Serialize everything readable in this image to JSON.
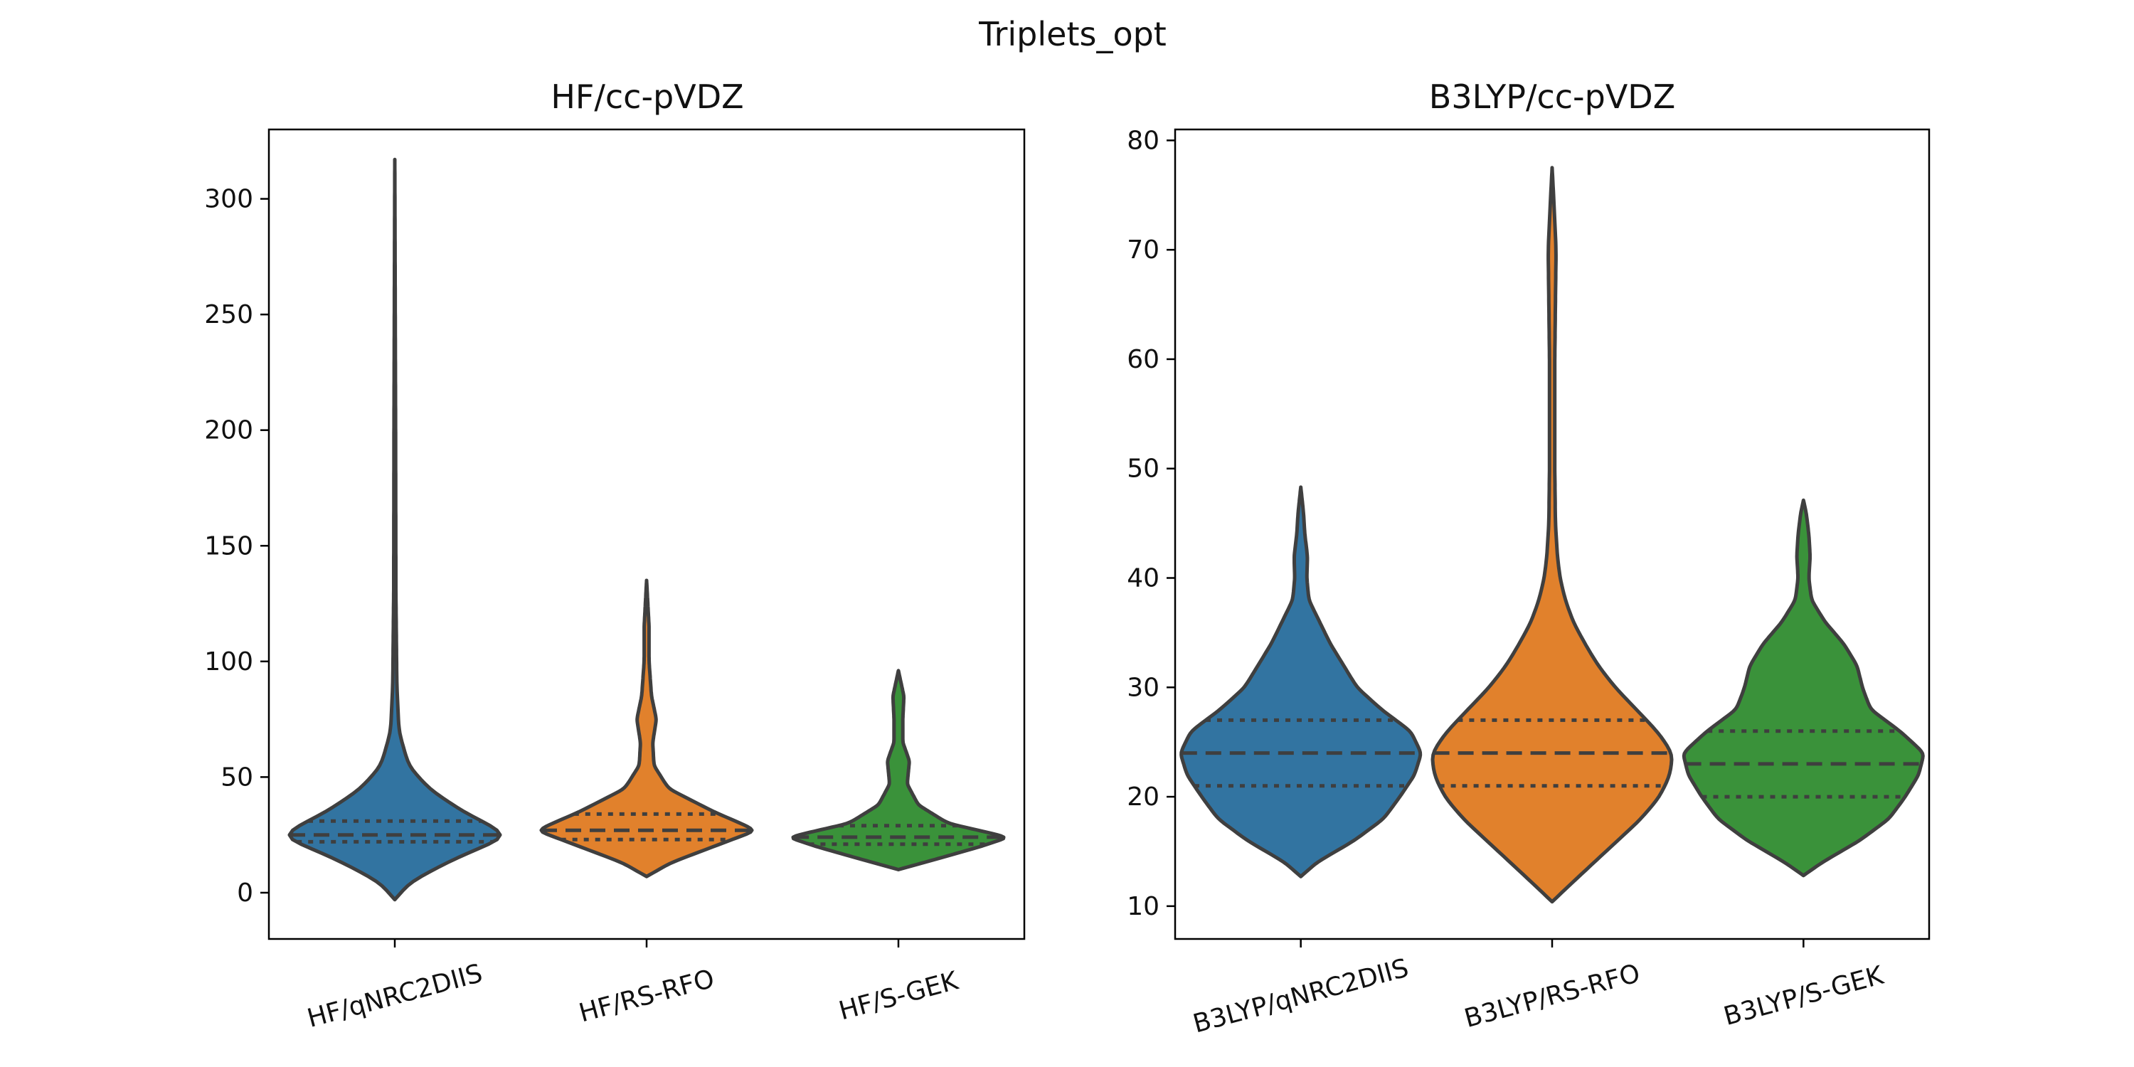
{
  "figure": {
    "title": "Triplets_opt"
  },
  "chart_data": [
    {
      "type": "violin",
      "title": "HF/cc-pVDZ",
      "xlabel": "",
      "ylabel": "",
      "ylim": [
        -20,
        330
      ],
      "yticks": [
        0,
        50,
        100,
        150,
        200,
        250,
        300
      ],
      "grid": false,
      "inner": "quartile",
      "categories": [
        "HF/qNRC2DIIS",
        "HF/RS-RFO",
        "HF/S-GEK"
      ],
      "colors": [
        "#3274a1",
        "#e1812c",
        "#3a923a"
      ],
      "violins": [
        {
          "name": "HF/qNRC2DIIS",
          "min": -3,
          "max": 317,
          "q1": 22,
          "median": 25,
          "q3": 31,
          "density": [
            [
              -3,
              0.0
            ],
            [
              5,
              0.12
            ],
            [
              15,
              0.45
            ],
            [
              25,
              0.85
            ],
            [
              35,
              0.5
            ],
            [
              45,
              0.25
            ],
            [
              55,
              0.1
            ],
            [
              70,
              0.03
            ],
            [
              90,
              0.015
            ],
            [
              130,
              0.008
            ],
            [
              200,
              0.006
            ],
            [
              317,
              0.0
            ]
          ]
        },
        {
          "name": "HF/RS-RFO",
          "min": 7,
          "max": 135,
          "q1": 23,
          "median": 27,
          "q3": 34,
          "density": [
            [
              7,
              0.0
            ],
            [
              13,
              0.2
            ],
            [
              20,
              0.55
            ],
            [
              27,
              0.9
            ],
            [
              35,
              0.55
            ],
            [
              45,
              0.18
            ],
            [
              55,
              0.06
            ],
            [
              65,
              0.05
            ],
            [
              75,
              0.08
            ],
            [
              85,
              0.04
            ],
            [
              100,
              0.02
            ],
            [
              115,
              0.02
            ],
            [
              135,
              0.0
            ]
          ]
        },
        {
          "name": "HF/S-GEK",
          "min": 10,
          "max": 96,
          "q1": 21,
          "median": 24,
          "q3": 29,
          "density": [
            [
              10,
              0.0
            ],
            [
              15,
              0.38
            ],
            [
              20,
              0.75
            ],
            [
              24,
              1.0
            ],
            [
              30,
              0.45
            ],
            [
              38,
              0.18
            ],
            [
              47,
              0.08
            ],
            [
              57,
              0.1
            ],
            [
              65,
              0.04
            ],
            [
              75,
              0.04
            ],
            [
              85,
              0.05
            ],
            [
              96,
              0.0
            ]
          ]
        }
      ]
    },
    {
      "type": "violin",
      "title": "B3LYP/cc-pVDZ",
      "xlabel": "",
      "ylabel": "",
      "ylim": [
        7,
        81
      ],
      "yticks": [
        10,
        20,
        30,
        40,
        50,
        60,
        70,
        80
      ],
      "grid": false,
      "inner": "quartile",
      "categories": [
        "B3LYP/qNRC2DIIS",
        "B3LYP/RS-RFO",
        "B3LYP/S-GEK"
      ],
      "colors": [
        "#3274a1",
        "#e1812c",
        "#3a923a"
      ],
      "violins": [
        {
          "name": "B3LYP/qNRC2DIIS",
          "min": 12.7,
          "max": 48.3,
          "q1": 21,
          "median": 24,
          "q3": 27,
          "density": [
            [
              12.7,
              0.0
            ],
            [
              14,
              0.12
            ],
            [
              16,
              0.4
            ],
            [
              18,
              0.62
            ],
            [
              20,
              0.74
            ],
            [
              22,
              0.85
            ],
            [
              24,
              0.9
            ],
            [
              26,
              0.82
            ],
            [
              28,
              0.6
            ],
            [
              30,
              0.42
            ],
            [
              32,
              0.32
            ],
            [
              34,
              0.22
            ],
            [
              36,
              0.14
            ],
            [
              38,
              0.06
            ],
            [
              40,
              0.045
            ],
            [
              42,
              0.05
            ],
            [
              44,
              0.03
            ],
            [
              46,
              0.02
            ],
            [
              48.3,
              0.0
            ]
          ]
        },
        {
          "name": "B3LYP/RS-RFO",
          "min": 10.4,
          "max": 77.5,
          "q1": 21,
          "median": 24,
          "q3": 27,
          "density": [
            [
              10.4,
              0.0
            ],
            [
              12,
              0.14
            ],
            [
              14,
              0.32
            ],
            [
              16,
              0.5
            ],
            [
              18,
              0.68
            ],
            [
              20,
              0.82
            ],
            [
              22,
              0.9
            ],
            [
              24,
              0.92
            ],
            [
              26,
              0.8
            ],
            [
              28,
              0.64
            ],
            [
              30,
              0.48
            ],
            [
              32,
              0.35
            ],
            [
              34,
              0.25
            ],
            [
              36,
              0.16
            ],
            [
              38,
              0.1
            ],
            [
              40,
              0.06
            ],
            [
              42,
              0.04
            ],
            [
              45,
              0.025
            ],
            [
              50,
              0.02
            ],
            [
              55,
              0.02
            ],
            [
              60,
              0.02
            ],
            [
              65,
              0.025
            ],
            [
              70,
              0.03
            ],
            [
              74,
              0.015
            ],
            [
              77.5,
              0.0
            ]
          ]
        },
        {
          "name": "B3LYP/S-GEK",
          "min": 12.8,
          "max": 47.1,
          "q1": 20,
          "median": 23,
          "q3": 26,
          "density": [
            [
              12.8,
              0.0
            ],
            [
              14,
              0.14
            ],
            [
              16,
              0.42
            ],
            [
              18,
              0.64
            ],
            [
              20,
              0.76
            ],
            [
              22,
              0.86
            ],
            [
              24,
              0.9
            ],
            [
              26,
              0.72
            ],
            [
              28,
              0.5
            ],
            [
              30,
              0.44
            ],
            [
              32,
              0.4
            ],
            [
              34,
              0.3
            ],
            [
              36,
              0.16
            ],
            [
              38,
              0.06
            ],
            [
              40,
              0.04
            ],
            [
              42,
              0.05
            ],
            [
              44,
              0.04
            ],
            [
              46,
              0.02
            ],
            [
              47.1,
              0.0
            ]
          ]
        }
      ]
    }
  ]
}
